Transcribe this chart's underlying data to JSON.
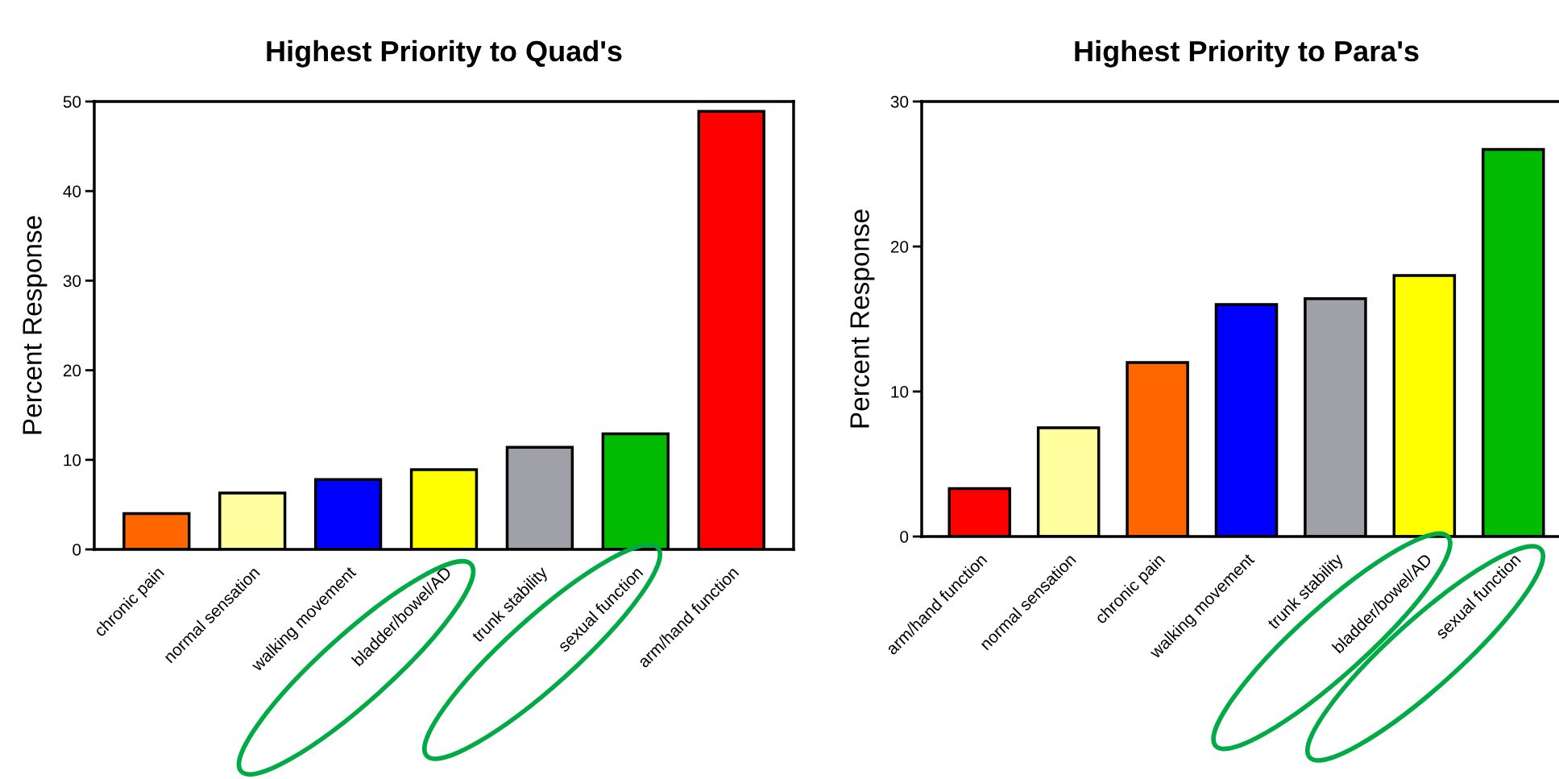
{
  "chart_data": [
    {
      "type": "bar",
      "title": "Highest Priority to Quad's",
      "ylabel": "Percent Response",
      "categories": [
        "chronic pain",
        "normal sensation",
        "walking movement",
        "bladder/bowel/AD",
        "trunk stability",
        "sexual function",
        "arm/hand function"
      ],
      "values": [
        4.0,
        6.3,
        7.8,
        8.9,
        11.4,
        12.9,
        48.9
      ],
      "colors": [
        "#ff6600",
        "#ffffa0",
        "#0000ff",
        "#ffff00",
        "#a0a0a8",
        "#00bb00",
        "#ff0000"
      ],
      "ylim": [
        0,
        50
      ],
      "yticks": [
        0,
        10,
        20,
        30,
        40,
        50
      ],
      "grid": false,
      "legend": false
    },
    {
      "type": "bar",
      "title": "Highest Priority to Para's",
      "ylabel": "Percent Response",
      "categories": [
        "arm/hand function",
        "normal sensation",
        "chronic pain",
        "walking movement",
        "trunk stability",
        "bladder/bowel/AD",
        "sexual function"
      ],
      "values": [
        3.3,
        7.5,
        12.0,
        16.0,
        16.4,
        18.0,
        26.7
      ],
      "colors": [
        "#ff0000",
        "#ffffa0",
        "#ff6600",
        "#0000ff",
        "#a0a0a8",
        "#ffff00",
        "#00bb00"
      ],
      "ylim": [
        0,
        30
      ],
      "yticks": [
        0,
        10,
        20,
        30
      ],
      "grid": false,
      "legend": false
    }
  ]
}
